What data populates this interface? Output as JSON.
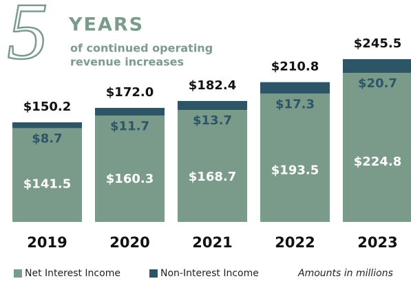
{
  "chart_data": {
    "type": "stacked-bar",
    "title_numeral": "5",
    "title": "YEARS",
    "subtitle_lines": [
      "of continued operating",
      "revenue increases"
    ],
    "categories": [
      "2019",
      "2020",
      "2021",
      "2022",
      "2023"
    ],
    "series": [
      {
        "name": "Net Interest Income",
        "color": "#7a9a8a",
        "values": [
          141.5,
          160.3,
          168.7,
          193.5,
          224.8
        ],
        "value_labels": [
          "$141.5",
          "$160.3",
          "$168.7",
          "$193.5",
          "$224.8"
        ]
      },
      {
        "name": "Non-Interest Income",
        "color": "#2c5566",
        "values": [
          8.7,
          11.7,
          13.7,
          17.3,
          20.7
        ],
        "value_labels": [
          "$8.7",
          "$11.7",
          "$13.7",
          "$17.3",
          "$20.7"
        ]
      }
    ],
    "total_labels": [
      "$150.2",
      "$172.0",
      "$182.4",
      "$210.8",
      "$245.5"
    ],
    "note": "Amounts in millions"
  }
}
